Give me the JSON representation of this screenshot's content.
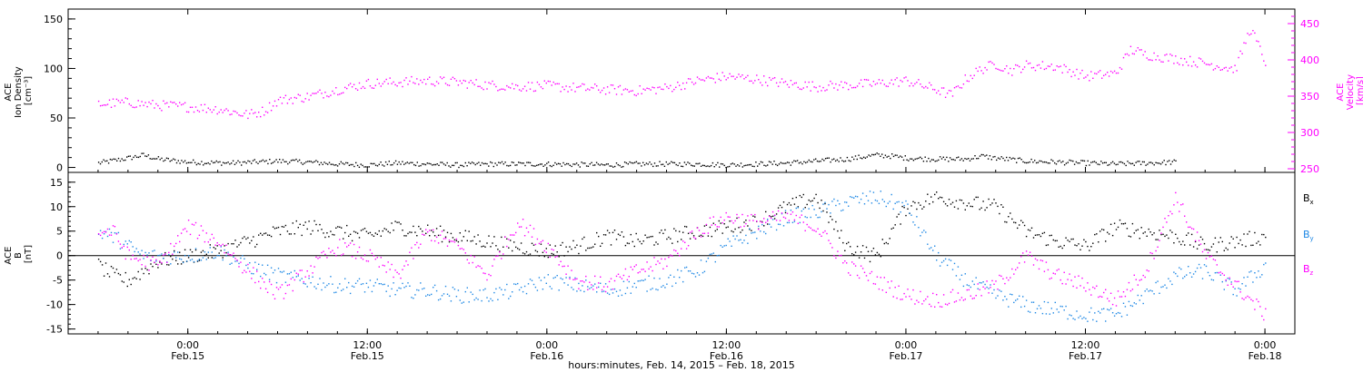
{
  "colors": {
    "density": "#000000",
    "velocity": "#ff00ff",
    "bx": "#000000",
    "by": "#1e88e5",
    "bz": "#ff00ff",
    "axis": "#000000"
  },
  "chart_data": [
    {
      "type": "scatter",
      "panel": "top",
      "ylabel_left": [
        "ACE",
        "Ion Density",
        "[cm⁻³]"
      ],
      "ylabel_right": [
        "ACE",
        "Velocity",
        "[km/s]"
      ],
      "ylim_left": [
        -5,
        160
      ],
      "ylim_right": [
        245,
        470
      ],
      "yticks_left": [
        0,
        50,
        100,
        150
      ],
      "yticks_right": [
        250,
        300,
        350,
        400,
        450
      ],
      "series": [
        {
          "axis": "left",
          "color": "#000000",
          "x_hours": [
            -6,
            -4,
            -3,
            -2,
            0,
            3,
            6,
            8,
            10,
            12,
            14,
            16,
            18,
            20,
            24,
            28,
            30,
            34,
            36,
            38,
            40,
            42,
            44,
            46,
            47,
            48,
            50,
            52,
            53,
            54,
            56,
            58,
            60,
            62,
            64,
            66
          ],
          "y": [
            5,
            10,
            13,
            9,
            6,
            5,
            7,
            6,
            4,
            3,
            5,
            4,
            3,
            4,
            4,
            3,
            4,
            4,
            3,
            4,
            5,
            7,
            9,
            13,
            12,
            10,
            9,
            9,
            12,
            10,
            7,
            6,
            5,
            4,
            5,
            6
          ]
        },
        {
          "axis": "right",
          "color": "#ff00ff",
          "x_hours": [
            -6,
            -4,
            -2,
            0,
            2,
            4,
            5,
            6,
            8,
            10,
            12,
            14,
            16,
            18,
            20,
            22,
            24,
            26,
            28,
            30,
            32,
            34,
            36,
            38,
            40,
            42,
            44,
            46,
            48,
            50,
            51,
            52,
            53,
            54,
            55,
            56,
            58,
            60,
            62,
            63,
            64,
            66,
            68,
            70,
            71,
            72
          ],
          "y": [
            340,
            342,
            338,
            336,
            333,
            325,
            330,
            345,
            350,
            360,
            368,
            370,
            372,
            370,
            366,
            364,
            365,
            362,
            360,
            358,
            362,
            372,
            378,
            374,
            368,
            364,
            366,
            368,
            372,
            360,
            352,
            375,
            388,
            395,
            386,
            393,
            392,
            378,
            382,
            415,
            408,
            402,
            396,
            388,
            445,
            398
          ]
        }
      ]
    },
    {
      "type": "scatter",
      "panel": "bottom",
      "ylabel_left": [
        "ACE",
        "B",
        "[nT]"
      ],
      "ylim": [
        -16,
        17
      ],
      "yticks": [
        -15,
        -10,
        -5,
        0,
        5,
        10,
        15
      ],
      "zero_line": true,
      "legend": [
        "Bx",
        "By",
        "Bz"
      ],
      "legend_placement": "right",
      "series": [
        {
          "name": "Bx",
          "color": "#000000",
          "x_hours": [
            -6,
            -5,
            -4,
            -3,
            -2,
            0,
            2,
            4,
            6,
            8,
            10,
            12,
            14,
            16,
            18,
            20,
            22,
            24,
            26,
            28,
            30,
            32,
            34,
            36,
            38,
            40,
            42,
            44,
            46,
            48,
            50,
            52,
            54,
            56,
            58,
            60,
            62,
            64,
            66,
            68,
            70,
            72
          ],
          "y": [
            -2,
            -4,
            -5,
            -3,
            -1,
            0,
            1,
            3,
            5,
            6,
            5,
            4,
            6,
            5,
            4,
            3,
            2,
            1,
            2,
            4,
            3,
            4,
            5,
            6,
            7,
            10,
            12,
            2,
            0,
            10,
            12,
            11,
            10,
            5,
            3,
            2,
            6,
            5,
            4,
            2,
            3,
            4
          ]
        },
        {
          "name": "By",
          "color": "#1e88e5",
          "x_hours": [
            -6,
            -5,
            -4,
            -3,
            -2,
            0,
            2,
            4,
            6,
            8,
            10,
            12,
            14,
            16,
            18,
            20,
            22,
            24,
            26,
            28,
            30,
            32,
            34,
            36,
            38,
            40,
            42,
            44,
            46,
            48,
            50,
            52,
            54,
            56,
            58,
            60,
            62,
            64,
            66,
            68,
            70,
            72
          ],
          "y": [
            5,
            4,
            2,
            0,
            0,
            0,
            1,
            -2,
            -4,
            -5,
            -6,
            -6,
            -7,
            -7,
            -8,
            -8,
            -7,
            -5,
            -6,
            -7,
            -6,
            -5,
            -3,
            2,
            5,
            8,
            9,
            11,
            12,
            10,
            0,
            -5,
            -8,
            -10,
            -11,
            -12,
            -12,
            -8,
            -4,
            -3,
            -7,
            -2
          ]
        },
        {
          "name": "Bz",
          "color": "#ff00ff",
          "x_hours": [
            -6,
            -5,
            -4,
            -3,
            -2,
            0,
            2,
            4,
            6,
            8,
            10,
            12,
            14,
            16,
            18,
            20,
            22,
            24,
            26,
            28,
            30,
            32,
            34,
            36,
            38,
            40,
            42,
            44,
            46,
            48,
            50,
            52,
            54,
            56,
            58,
            60,
            62,
            64,
            66,
            68,
            70,
            72
          ],
          "y": [
            5,
            5,
            0,
            -1,
            -2,
            6,
            3,
            -3,
            -8,
            -3,
            2,
            0,
            -4,
            5,
            2,
            -4,
            7,
            2,
            -5,
            -6,
            -3,
            -1,
            5,
            8,
            7,
            8,
            6,
            -2,
            -5,
            -8,
            -9,
            -8,
            -6,
            0,
            -4,
            -6,
            -9,
            -3,
            12,
            0,
            -6,
            -12
          ]
        }
      ]
    }
  ],
  "x_axis": {
    "xlim_hours": [
      -8,
      74
    ],
    "label": "hours:minutes, Feb. 14, 2015 – Feb. 18, 2015",
    "ticks": [
      {
        "hour": 0,
        "time": "0:00",
        "date": "Feb.15"
      },
      {
        "hour": 12,
        "time": "12:00",
        "date": "Feb.15"
      },
      {
        "hour": 24,
        "time": "0:00",
        "date": "Feb.16"
      },
      {
        "hour": 36,
        "time": "12:00",
        "date": "Feb.16"
      },
      {
        "hour": 48,
        "time": "0:00",
        "date": "Feb.17"
      },
      {
        "hour": 60,
        "time": "12:00",
        "date": "Feb.17"
      },
      {
        "hour": 72,
        "time": "0:00",
        "date": "Feb.18"
      }
    ]
  }
}
